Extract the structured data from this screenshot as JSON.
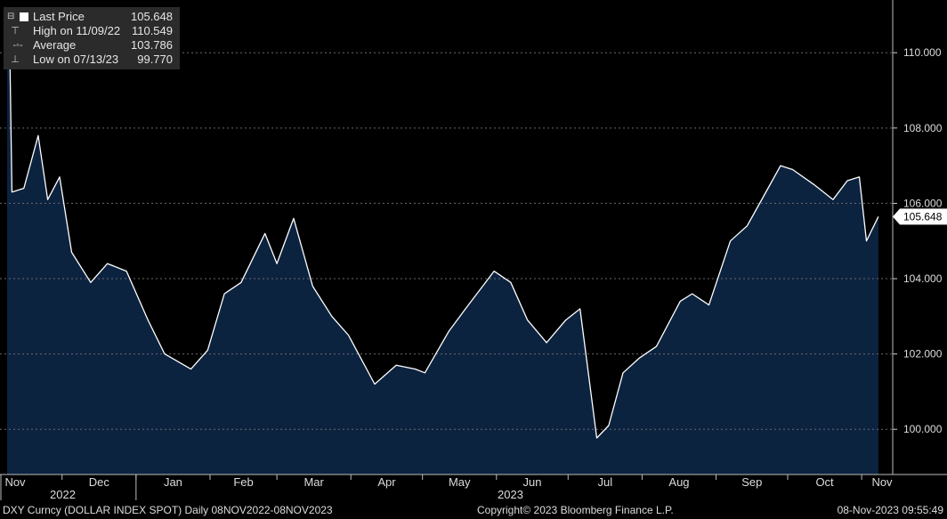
{
  "legend": {
    "last_label": "Last Price",
    "last_value": "105.648",
    "high_label": "High on 11/09/22",
    "high_value": "110.549",
    "avg_label": "Average",
    "avg_value": "103.786",
    "low_label": "Low on 07/13/23",
    "low_value": "99.770"
  },
  "footer": {
    "ticker": "DXY Curncy (DOLLAR INDEX SPOT)  Daily 08NOV2022-08NOV2023",
    "copyright": "Copyright© 2023 Bloomberg Finance L.P.",
    "timestamp": "08-Nov-2023 09:55:49"
  },
  "colors": {
    "background": "#000000",
    "line": "#ffffff",
    "area": "#0c2340",
    "legend_bg": "#2b2b2b"
  },
  "chart_data": {
    "type": "area",
    "ylim": [
      98.8,
      111.4
    ],
    "y_ticks": [
      "110.000",
      "108.000",
      "106.000",
      "104.000",
      "102.000",
      "100.000"
    ],
    "last_price_label": "105.648",
    "x_month_labels": [
      "Nov",
      "Dec",
      "Jan",
      "Feb",
      "Mar",
      "Apr",
      "May",
      "Jun",
      "Jul",
      "Aug",
      "Sep",
      "Oct",
      "Nov"
    ],
    "x_year_labels": [
      "2022",
      "2023"
    ],
    "x": [
      "2022-11-08",
      "2022-11-09",
      "2022-11-10",
      "2022-11-15",
      "2022-11-21",
      "2022-11-25",
      "2022-11-30",
      "2022-12-05",
      "2022-12-13",
      "2022-12-20",
      "2022-12-28",
      "2023-01-06",
      "2023-01-13",
      "2023-01-24",
      "2023-01-31",
      "2023-02-07",
      "2023-02-14",
      "2023-02-24",
      "2023-03-01",
      "2023-03-08",
      "2023-03-16",
      "2023-03-24",
      "2023-03-31",
      "2023-04-11",
      "2023-04-20",
      "2023-04-28",
      "2023-05-02",
      "2023-05-12",
      "2023-05-19",
      "2023-05-31",
      "2023-06-07",
      "2023-06-14",
      "2023-06-22",
      "2023-06-30",
      "2023-07-06",
      "2023-07-13",
      "2023-07-18",
      "2023-07-24",
      "2023-07-31",
      "2023-08-07",
      "2023-08-17",
      "2023-08-22",
      "2023-08-29",
      "2023-09-07",
      "2023-09-14",
      "2023-09-21",
      "2023-09-28",
      "2023-10-03",
      "2023-10-12",
      "2023-10-20",
      "2023-10-26",
      "2023-10-31",
      "2023-11-03",
      "2023-11-08"
    ],
    "series": [
      {
        "values": [
          110.2,
          110.549,
          106.3,
          106.4,
          107.8,
          106.1,
          106.7,
          104.7,
          103.9,
          104.4,
          104.2,
          102.9,
          102.0,
          101.6,
          102.1,
          103.6,
          103.9,
          105.2,
          104.4,
          105.6,
          103.8,
          103.0,
          102.5,
          101.2,
          101.7,
          101.6,
          101.5,
          102.6,
          103.2,
          104.2,
          103.9,
          102.9,
          102.3,
          102.9,
          103.2,
          99.77,
          100.1,
          101.5,
          101.9,
          102.2,
          103.4,
          103.6,
          103.3,
          105.0,
          105.4,
          106.2,
          107.0,
          106.9,
          106.5,
          106.1,
          106.6,
          106.7,
          105.0,
          105.648
        ]
      }
    ]
  }
}
